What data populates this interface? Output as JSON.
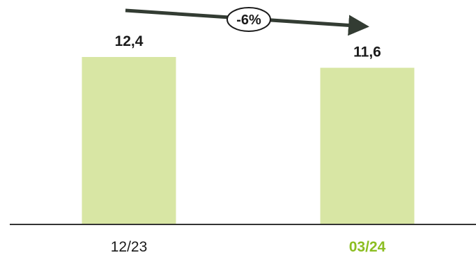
{
  "chart_data": {
    "type": "bar",
    "categories": [
      "12/23",
      "03/24"
    ],
    "values": [
      12.4,
      11.6
    ],
    "value_labels": [
      "12,4",
      "11,6"
    ],
    "ylim": [
      0,
      12.4
    ],
    "title": "",
    "xlabel": "",
    "ylabel": "",
    "grid": false,
    "legend": "none",
    "change_label": "-6%",
    "highlight_category_index": 1
  },
  "colors": {
    "bar": "#d8e6a4",
    "highlight_label": "#8cbe22",
    "text": "#1a1a1a",
    "axis": "#333333",
    "arrow": "#333c33"
  }
}
